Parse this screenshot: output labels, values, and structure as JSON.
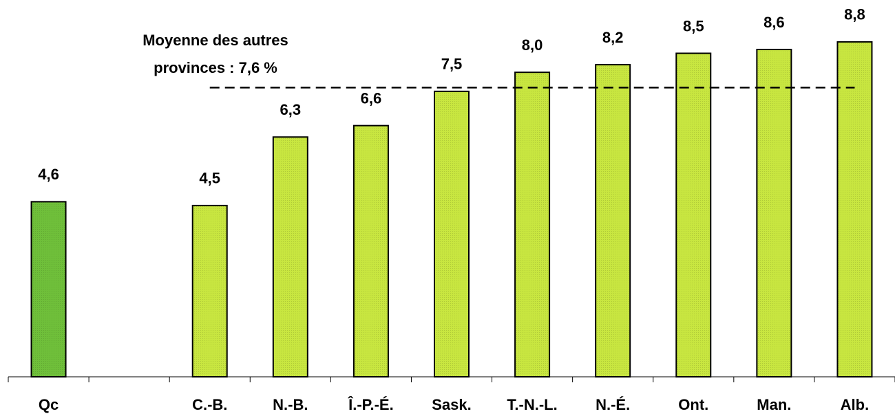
{
  "chart_data": {
    "type": "bar",
    "categories": [
      "Qc",
      null,
      "C.-B.",
      "N.-B.",
      "Î.-P.-É.",
      "Sask.",
      "T.-N.-L.",
      "N.-É.",
      "Ont.",
      "Man.",
      "Alb."
    ],
    "values": [
      4.6,
      null,
      4.5,
      6.3,
      6.6,
      7.5,
      8.0,
      8.2,
      8.5,
      8.6,
      8.8
    ],
    "value_labels": [
      "4,6",
      null,
      "4,5",
      "6,3",
      "6,6",
      "7,5",
      "8,0",
      "8,2",
      "8,5",
      "8,6",
      "8,8"
    ],
    "colors": [
      "#6fbf3a",
      null,
      "#c8e640",
      "#c8e640",
      "#c8e640",
      "#c8e640",
      "#c8e640",
      "#c8e640",
      "#c8e640",
      "#c8e640",
      "#c8e640"
    ],
    "ylim": [
      0,
      9.9
    ],
    "reference_line": {
      "value": 7.6,
      "label": [
        "Moyenne des autres",
        "provinces : 7,6 %"
      ]
    }
  }
}
